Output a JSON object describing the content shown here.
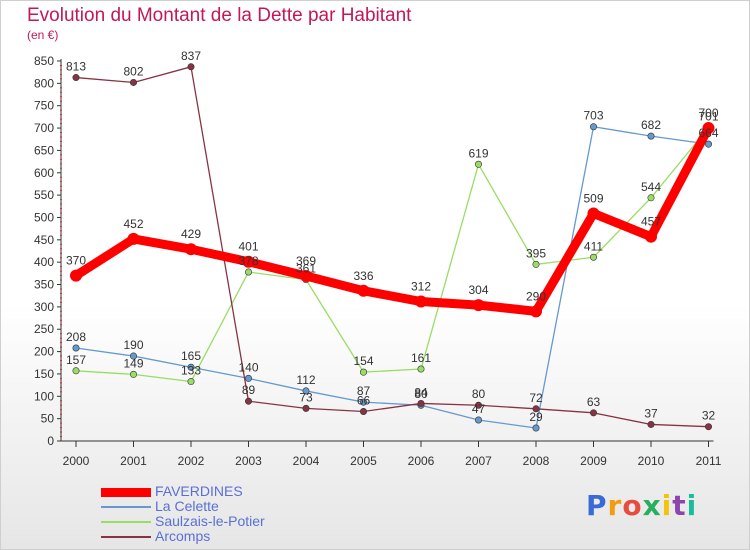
{
  "chart_data": {
    "type": "line",
    "title": "Evolution du Montant de la Dette par Habitant",
    "subtitle": "(en €)",
    "categories": [
      "2000",
      "2001",
      "2002",
      "2003",
      "2004",
      "2005",
      "2006",
      "2007",
      "2008",
      "2009",
      "2010",
      "2011"
    ],
    "ylim": [
      0,
      850
    ],
    "yticks": [
      0,
      50,
      100,
      150,
      200,
      250,
      300,
      350,
      400,
      450,
      500,
      550,
      600,
      650,
      700,
      750,
      800,
      850
    ],
    "grid": false,
    "legend_position": "bottom-left",
    "series": [
      {
        "name": "FAVERDINES",
        "color": "#ff0000",
        "values": [
          370,
          452,
          429,
          401,
          369,
          336,
          312,
          304,
          290,
          509,
          457,
          700
        ]
      },
      {
        "name": "La Celette",
        "color": "#6699cc",
        "values": [
          208,
          190,
          165,
          140,
          112,
          87,
          80,
          47,
          29,
          703,
          682,
          664
        ]
      },
      {
        "name": "Saulzais-le-Potier",
        "color": "#99dd66",
        "values": [
          157,
          149,
          133,
          378,
          361,
          154,
          161,
          619,
          395,
          411,
          544,
          701
        ]
      },
      {
        "name": "Arcomps",
        "color": "#883344",
        "values": [
          813,
          802,
          837,
          89,
          73,
          66,
          84,
          80,
          72,
          63,
          37,
          32
        ]
      }
    ]
  },
  "logo": {
    "text": "Proxiti",
    "colors": [
      "#3a6ad4",
      "#f39c12",
      "#e74c3c",
      "#27ae60",
      "#f1c40f",
      "#8e44ad",
      "#1abc9c"
    ]
  }
}
